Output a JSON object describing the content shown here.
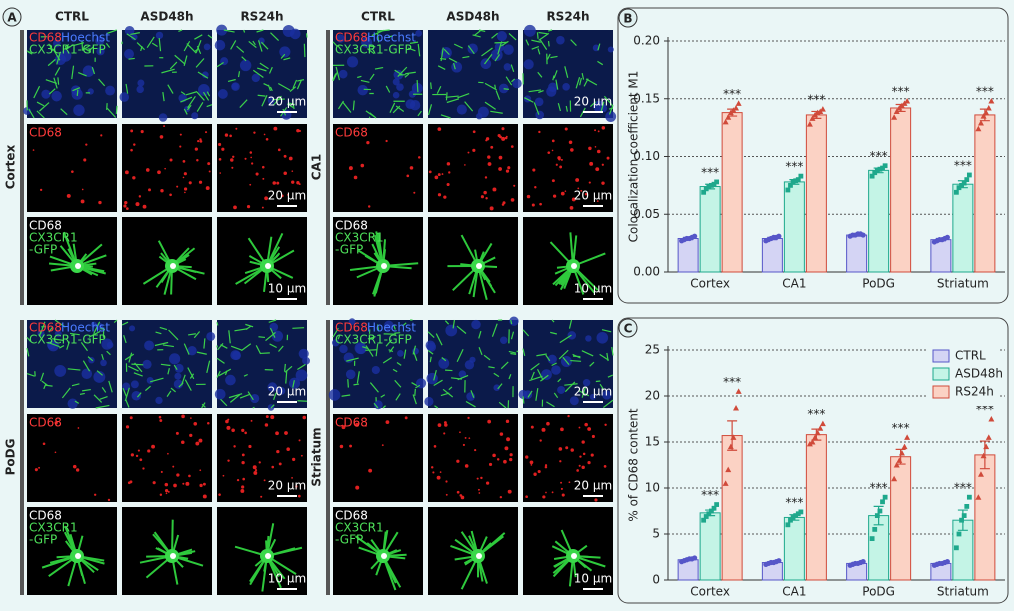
{
  "panel_a": {
    "label": "A",
    "columns": [
      "CTRL",
      "ASD48h",
      "RS24h"
    ],
    "regions": [
      "Cortex",
      "CA1",
      "PoDG",
      "Striatum"
    ],
    "channels": {
      "red": "CD68",
      "blue": "Hoechst",
      "green": "CX3CR1-GFP",
      "white": "CD68",
      "green_short": "CX3CR1",
      "green_suffix": "-GFP"
    },
    "scale_bars": [
      "20 µm",
      "20 µm",
      "10 µm"
    ]
  },
  "chart_data": [
    {
      "type": "bar",
      "label": "B",
      "ylabel": "Colocalization coefficient M1",
      "categories": [
        "Cortex",
        "CA1",
        "PoDG",
        "Striatum"
      ],
      "ylim": [
        0,
        0.2
      ],
      "yticks": [
        {
          "value": 0,
          "label": "0.00"
        },
        {
          "value": 0.05,
          "label": "0.05"
        },
        {
          "value": 0.1,
          "label": "0.10"
        },
        {
          "value": 0.15,
          "label": "0.15"
        },
        {
          "value": 0.2,
          "label": "0.20"
        }
      ],
      "grid": true,
      "series": [
        {
          "name": "CTRL",
          "color": "#d4d4f4",
          "point_color": "#5656c8",
          "values": [
            0.029,
            0.029,
            0.032,
            0.028
          ],
          "errors": [
            0.001,
            0.001,
            0.001,
            0.001
          ],
          "points": [
            [
              0.027,
              0.028,
              0.029,
              0.029,
              0.03,
              0.031
            ],
            [
              0.027,
              0.028,
              0.029,
              0.03,
              0.03,
              0.031
            ],
            [
              0.031,
              0.032,
              0.032,
              0.033,
              0.033,
              0.032
            ],
            [
              0.026,
              0.027,
              0.028,
              0.028,
              0.029,
              0.03
            ]
          ]
        },
        {
          "name": "ASD48h",
          "color": "#c4f4e6",
          "point_color": "#1ea88c",
          "values": [
            0.074,
            0.078,
            0.088,
            0.076
          ],
          "errors": [
            0.002,
            0.002,
            0.002,
            0.003
          ],
          "points": [
            [
              0.069,
              0.072,
              0.074,
              0.075,
              0.076,
              0.078
            ],
            [
              0.071,
              0.075,
              0.078,
              0.079,
              0.08,
              0.083
            ],
            [
              0.083,
              0.086,
              0.088,
              0.089,
              0.09,
              0.092
            ],
            [
              0.069,
              0.073,
              0.075,
              0.077,
              0.08,
              0.084
            ]
          ],
          "annotations": [
            "***",
            "***",
            "***",
            "***"
          ]
        },
        {
          "name": "RS24h",
          "color": "#fbd2c4",
          "point_color": "#d04a3a",
          "values": [
            0.138,
            0.136,
            0.142,
            0.136
          ],
          "errors": [
            0.003,
            0.003,
            0.003,
            0.005
          ],
          "points": [
            [
              0.13,
              0.134,
              0.138,
              0.14,
              0.142,
              0.146
            ],
            [
              0.128,
              0.133,
              0.136,
              0.138,
              0.139,
              0.141
            ],
            [
              0.134,
              0.139,
              0.142,
              0.144,
              0.146,
              0.148
            ],
            [
              0.124,
              0.129,
              0.135,
              0.138,
              0.142,
              0.148
            ]
          ],
          "annotations": [
            "***",
            "***",
            "***",
            "***"
          ]
        }
      ]
    },
    {
      "type": "bar",
      "label": "C",
      "ylabel": "% of CD68 content",
      "categories": [
        "Cortex",
        "CA1",
        "PoDG",
        "Striatum"
      ],
      "ylim": [
        0,
        25
      ],
      "yticks": [
        0,
        5,
        10,
        15,
        20,
        25
      ],
      "grid": true,
      "legend": "upper right",
      "series": [
        {
          "name": "CTRL",
          "color": "#d4d4f4",
          "point_color": "#5656c8",
          "values": [
            2.2,
            1.9,
            1.8,
            1.8
          ],
          "errors": [
            0.1,
            0.1,
            0.1,
            0.1
          ],
          "points": [
            [
              2.0,
              2.1,
              2.2,
              2.3,
              2.3,
              2.4
            ],
            [
              1.7,
              1.8,
              1.9,
              1.9,
              2.0,
              2.1
            ],
            [
              1.6,
              1.7,
              1.8,
              1.8,
              1.9,
              2.0
            ],
            [
              1.6,
              1.7,
              1.8,
              1.8,
              1.9,
              2.0
            ]
          ]
        },
        {
          "name": "ASD48h",
          "color": "#c4f4e6",
          "point_color": "#1ea88c",
          "values": [
            7.3,
            6.8,
            7.0,
            6.5
          ],
          "errors": [
            0.3,
            0.3,
            1.0,
            1.1
          ],
          "points": [
            [
              6.5,
              6.9,
              7.2,
              7.5,
              7.8,
              8.2
            ],
            [
              6.0,
              6.5,
              6.8,
              7.0,
              7.2,
              7.4
            ],
            [
              4.5,
              5.5,
              7.0,
              7.5,
              8.5,
              9.0
            ],
            [
              3.5,
              5.0,
              6.5,
              7.0,
              8.0,
              9.0
            ]
          ],
          "annotations": [
            "***",
            "***",
            "***",
            "***"
          ]
        },
        {
          "name": "RS24h",
          "color": "#fbd2c4",
          "point_color": "#d04a3a",
          "values": [
            15.7,
            15.8,
            13.4,
            13.6
          ],
          "errors": [
            1.6,
            0.6,
            0.8,
            1.5
          ],
          "points": [
            [
              10.5,
              12.0,
              14.5,
              15.5,
              18.7,
              20.5
            ],
            [
              14.8,
              15.0,
              15.5,
              16.0,
              16.5,
              17.0
            ],
            [
              11.0,
              12.5,
              13.0,
              13.8,
              14.5,
              15.5
            ],
            [
              9.0,
              11.5,
              13.5,
              14.5,
              15.5,
              17.5
            ]
          ],
          "annotations": [
            "***",
            "***",
            "***",
            "***"
          ]
        }
      ]
    }
  ]
}
